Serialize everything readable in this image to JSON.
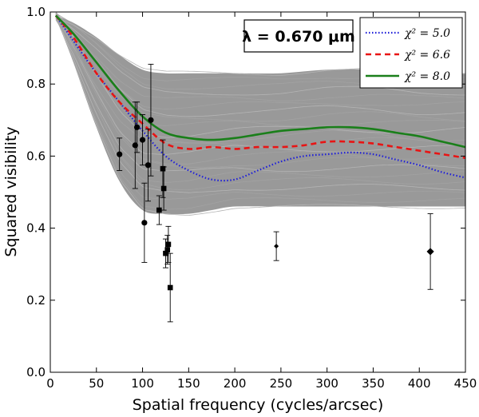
{
  "chart_data": {
    "type": "line",
    "xlabel": "Spatial frequency (cycles/arcsec)",
    "ylabel": "Squared visibility",
    "xlim": [
      0,
      450
    ],
    "ylim": [
      0.0,
      1.0
    ],
    "xticks": [
      0,
      50,
      100,
      150,
      200,
      250,
      300,
      350,
      400,
      450
    ],
    "yticks": [
      0.0,
      0.2,
      0.4,
      0.6,
      0.8,
      1.0
    ],
    "xtick_labels": [
      "0",
      "50",
      "100",
      "150",
      "200",
      "250",
      "300",
      "350",
      "400",
      "450"
    ],
    "ytick_labels": [
      "0.0",
      "0.2",
      "0.4",
      "0.6",
      "0.8",
      "1.0"
    ],
    "annotation": "λ = 0.670 μm",
    "model_envelope": {
      "color": "#999999",
      "x": [
        6,
        25,
        50,
        75,
        100,
        125,
        150,
        175,
        200,
        250,
        300,
        350,
        400,
        450
      ],
      "upper": [
        0.99,
        0.97,
        0.93,
        0.88,
        0.84,
        0.83,
        0.83,
        0.83,
        0.83,
        0.83,
        0.84,
        0.84,
        0.83,
        0.83
      ],
      "lower": [
        0.99,
        0.86,
        0.68,
        0.53,
        0.45,
        0.44,
        0.44,
        0.45,
        0.46,
        0.46,
        0.46,
        0.46,
        0.46,
        0.46
      ],
      "n_lines": 22
    },
    "series": [
      {
        "name": "χ² = 5.0",
        "label": "χ² = 5.0",
        "color": "#1f1fd9",
        "style": "dotted",
        "x": [
          6,
          25,
          50,
          75,
          100,
          125,
          150,
          175,
          200,
          225,
          250,
          275,
          300,
          325,
          350,
          375,
          400,
          425,
          450
        ],
        "y": [
          0.99,
          0.92,
          0.83,
          0.75,
          0.67,
          0.6,
          0.56,
          0.535,
          0.535,
          0.56,
          0.585,
          0.6,
          0.605,
          0.61,
          0.605,
          0.59,
          0.575,
          0.555,
          0.54
        ]
      },
      {
        "name": "χ² = 6.6",
        "label": "χ² = 6.6",
        "color": "#e81414",
        "style": "dashed",
        "x": [
          6,
          25,
          50,
          75,
          100,
          125,
          150,
          175,
          200,
          225,
          250,
          275,
          300,
          325,
          350,
          375,
          400,
          425,
          450
        ],
        "y": [
          0.99,
          0.93,
          0.83,
          0.75,
          0.69,
          0.635,
          0.62,
          0.625,
          0.62,
          0.625,
          0.625,
          0.63,
          0.64,
          0.64,
          0.635,
          0.625,
          0.615,
          0.605,
          0.595
        ]
      },
      {
        "name": "χ² = 8.0",
        "label": "χ² = 8.0",
        "color": "#1a7f1a",
        "style": "solid",
        "x": [
          6,
          25,
          50,
          75,
          100,
          125,
          150,
          175,
          200,
          225,
          250,
          275,
          300,
          325,
          350,
          375,
          400,
          425,
          450
        ],
        "y": [
          0.99,
          0.94,
          0.86,
          0.78,
          0.71,
          0.665,
          0.65,
          0.645,
          0.65,
          0.66,
          0.67,
          0.675,
          0.68,
          0.68,
          0.675,
          0.665,
          0.655,
          0.64,
          0.625
        ]
      }
    ],
    "data_points": {
      "circles": [
        {
          "x": 75,
          "y": 0.605,
          "err": 0.045
        },
        {
          "x": 92,
          "y": 0.63,
          "err": 0.12
        },
        {
          "x": 94,
          "y": 0.68,
          "err": 0.07
        },
        {
          "x": 100,
          "y": 0.645,
          "err": 0.07
        },
        {
          "x": 102,
          "y": 0.415,
          "err": 0.11
        },
        {
          "x": 106,
          "y": 0.575,
          "err": 0.1
        },
        {
          "x": 109,
          "y": 0.7,
          "err": 0.155
        }
      ],
      "squares": [
        {
          "x": 118,
          "y": 0.45,
          "err": 0.04
        },
        {
          "x": 122,
          "y": 0.565,
          "err": 0.08
        },
        {
          "x": 123,
          "y": 0.51,
          "err": 0.06
        },
        {
          "x": 125,
          "y": 0.33,
          "err": 0.04
        },
        {
          "x": 127,
          "y": 0.34,
          "err": 0.04
        },
        {
          "x": 128,
          "y": 0.355,
          "err": 0.05
        },
        {
          "x": 130,
          "y": 0.235,
          "err": 0.095
        }
      ],
      "small_diamonds": [
        {
          "x": 245,
          "y": 0.35,
          "err": 0.04
        }
      ],
      "diamonds": [
        {
          "x": 412,
          "y": 0.335,
          "err": 0.105
        }
      ]
    },
    "legend_position": "top-right",
    "grid": false
  }
}
